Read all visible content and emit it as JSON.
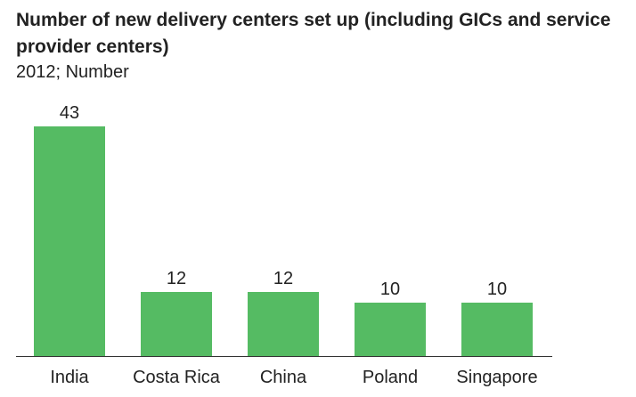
{
  "chart_data": {
    "type": "bar",
    "title": "Number of new delivery centers set up (including GICs and service provider centers)",
    "subtitle": "2012; Number",
    "categories": [
      "India",
      "Costa Rica",
      "China",
      "Poland",
      "Singapore"
    ],
    "values": [
      43,
      12,
      12,
      10,
      10
    ],
    "ylim": [
      0,
      43
    ],
    "xlabel": "",
    "ylabel": "",
    "grid": false,
    "legend": "none",
    "bar_color": "#55bb63",
    "data_labels": true
  }
}
